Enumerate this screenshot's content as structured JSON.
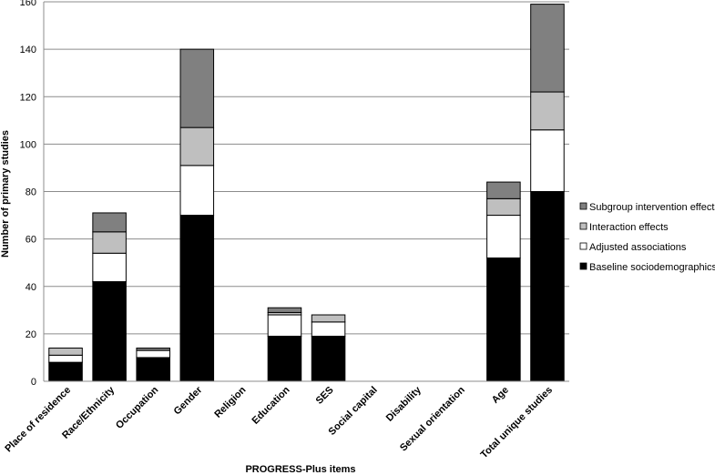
{
  "chart_data": {
    "type": "bar",
    "stacked": true,
    "title": "",
    "xlabel": "PROGRESS-Plus items",
    "ylabel": "Number of primary studies",
    "ylim": [
      0,
      160
    ],
    "yticks": [
      0,
      20,
      40,
      60,
      80,
      100,
      120,
      140,
      160
    ],
    "grid": "horizontal",
    "legend_position": "right",
    "categories": [
      "Place of residence",
      "Race/Ethnicity",
      "Occupation",
      "Gender",
      "Religion",
      "Education",
      "SES",
      "Social capital",
      "Disability",
      "Sexual orientation",
      "Age",
      "Total unique studies"
    ],
    "series": [
      {
        "name": "Baseline sociodemographics",
        "color": "#000000",
        "values": [
          8,
          42,
          10,
          70,
          0,
          19,
          19,
          0,
          0,
          0,
          52,
          80
        ]
      },
      {
        "name": "Adjusted associations",
        "color": "#ffffff",
        "values": [
          3,
          12,
          3,
          21,
          0,
          9,
          6,
          0,
          0,
          0,
          18,
          26
        ]
      },
      {
        "name": "Interaction effects",
        "color": "#bfbfbf",
        "values": [
          3,
          9,
          0,
          16,
          0,
          1,
          3,
          0,
          0,
          0,
          7,
          16
        ]
      },
      {
        "name": "Subgroup intervention effects",
        "color": "#808080",
        "values": [
          0,
          8,
          1,
          33,
          0,
          2,
          0,
          0,
          0,
          0,
          7,
          37
        ]
      }
    ],
    "legend_order": [
      "Subgroup intervention effects",
      "Interaction effects",
      "Adjusted associations",
      "Baseline sociodemographics"
    ]
  }
}
